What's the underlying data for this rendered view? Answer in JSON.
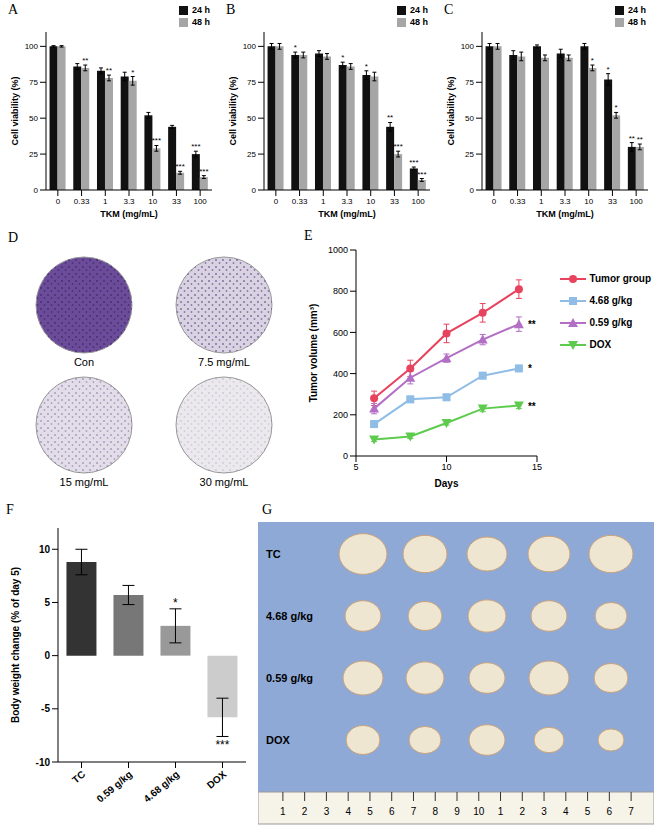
{
  "chart_data": [
    {
      "panel": "A",
      "type": "bar",
      "x_label": "TKM (mg/mL)",
      "y_label": "Cell viability (%)",
      "categories": [
        "0",
        "0.33",
        "1",
        "3.3",
        "10",
        "33",
        "100"
      ],
      "ylim": [
        0,
        110
      ],
      "yticks": [
        0,
        25,
        50,
        75,
        100
      ],
      "legend": "upper right",
      "series": [
        {
          "name": "24 h",
          "color": "#111111",
          "values": [
            100,
            86,
            83,
            79,
            52,
            44,
            25
          ],
          "errors": [
            0.5,
            2,
            2,
            3,
            2,
            1,
            2
          ],
          "significance": [
            null,
            null,
            null,
            null,
            null,
            null,
            "***"
          ]
        },
        {
          "name": "48 h",
          "color": "#a6a6a6",
          "values": [
            100,
            85,
            78,
            76,
            29,
            12,
            9
          ],
          "errors": [
            0.5,
            2,
            2,
            3,
            2,
            1,
            1
          ],
          "significance": [
            null,
            "**",
            "**",
            "*",
            "***",
            "***",
            "***"
          ]
        }
      ]
    },
    {
      "panel": "B",
      "type": "bar",
      "x_label": "TKM (mg/mL)",
      "y_label": "Cell viability (%)",
      "categories": [
        "0",
        "0.33",
        "1",
        "3.3",
        "10",
        "33",
        "100"
      ],
      "ylim": [
        0,
        110
      ],
      "yticks": [
        0,
        25,
        50,
        75,
        100
      ],
      "legend": "upper right",
      "series": [
        {
          "name": "24 h",
          "color": "#111111",
          "values": [
            100,
            94,
            95,
            87,
            80,
            44,
            15
          ],
          "errors": [
            2,
            2,
            2,
            2,
            3,
            3,
            1
          ],
          "significance": [
            null,
            "*",
            null,
            "*",
            "*",
            "**",
            "***"
          ]
        },
        {
          "name": "48 h",
          "color": "#a6a6a6",
          "values": [
            100,
            94,
            93,
            86,
            79,
            25,
            7
          ],
          "errors": [
            2,
            2,
            2,
            2,
            3,
            2,
            1
          ],
          "significance": [
            null,
            null,
            null,
            null,
            null,
            "***",
            "***"
          ]
        }
      ]
    },
    {
      "panel": "C",
      "type": "bar",
      "x_label": "TKM (mg/mL)",
      "y_label": "Cell viability (%)",
      "categories": [
        "0",
        "0.33",
        "1",
        "3.3",
        "10",
        "33",
        "100"
      ],
      "ylim": [
        0,
        110
      ],
      "yticks": [
        0,
        25,
        50,
        75,
        100
      ],
      "legend": "upper right",
      "series": [
        {
          "name": "24 h",
          "color": "#111111",
          "values": [
            100,
            94,
            100,
            95,
            100,
            77,
            30
          ],
          "errors": [
            2,
            3,
            1,
            3,
            2,
            4,
            3
          ],
          "significance": [
            null,
            null,
            null,
            null,
            null,
            "*",
            "**"
          ]
        },
        {
          "name": "48 h",
          "color": "#a6a6a6",
          "values": [
            100,
            93,
            92,
            92,
            85,
            52,
            30
          ],
          "errors": [
            2,
            3,
            2,
            2,
            2,
            2,
            2
          ],
          "significance": [
            null,
            null,
            null,
            null,
            "*",
            "*",
            "**"
          ]
        }
      ]
    },
    {
      "panel": "E",
      "type": "line",
      "x_label": "Days",
      "y_label": "Tumor volume (mm³)",
      "x": [
        6,
        8,
        10,
        12,
        14
      ],
      "xlim": [
        5,
        15
      ],
      "xticks": [
        5,
        10,
        15
      ],
      "ylim": [
        0,
        1000
      ],
      "yticks": [
        0,
        200,
        400,
        600,
        800,
        1000
      ],
      "legend": "right",
      "series": [
        {
          "name": "Tumor group",
          "color": "#e8435e",
          "marker": "circle",
          "values": [
            280,
            425,
            595,
            695,
            810
          ],
          "errors": [
            35,
            40,
            45,
            45,
            45
          ],
          "significance": null
        },
        {
          "name": "4.68 g/kg",
          "color": "#8fbde6",
          "marker": "square",
          "values": [
            155,
            275,
            285,
            390,
            425
          ],
          "errors": [
            15,
            15,
            15,
            15,
            15
          ],
          "significance": "*"
        },
        {
          "name": "0.59 g/kg",
          "color": "#b36fc6",
          "marker": "triangle",
          "values": [
            230,
            380,
            475,
            565,
            640
          ],
          "errors": [
            25,
            30,
            20,
            25,
            35
          ],
          "significance": "**"
        },
        {
          "name": "DOX",
          "color": "#5ecb4f",
          "marker": "triangle-down",
          "values": [
            80,
            95,
            160,
            230,
            245
          ],
          "errors": [
            10,
            10,
            10,
            15,
            15
          ],
          "significance": "**"
        }
      ]
    },
    {
      "panel": "F",
      "type": "bar",
      "y_label": "Body weight change (% of day 5)",
      "categories": [
        "TC",
        "0.59 g/kg",
        "4.68 g/kg",
        "DOX"
      ],
      "values": [
        8.8,
        5.7,
        2.8,
        -5.8
      ],
      "errors": [
        1.2,
        0.9,
        1.6,
        1.8
      ],
      "significance": [
        null,
        null,
        "*",
        "***"
      ],
      "colors": [
        "#333333",
        "#777777",
        "#999999",
        "#cccccc"
      ],
      "ylim": [
        -10,
        12
      ],
      "yticks": [
        -10,
        -5,
        0,
        5,
        10
      ]
    }
  ],
  "images": [
    {
      "panel": "D",
      "labels": [
        "Con",
        "7.5 mg/mL",
        "15 mg/mL",
        "30 mg/mL"
      ]
    },
    {
      "panel": "G",
      "row_labels": [
        "TC",
        "4.68 g/kg",
        "0.59 g/kg",
        "DOX"
      ],
      "ruler": [
        "1",
        "2",
        "3",
        "4",
        "5",
        "6",
        "7",
        "8",
        "9",
        "10",
        "1",
        "2",
        "3",
        "4",
        "5",
        "6",
        "7"
      ]
    }
  ]
}
